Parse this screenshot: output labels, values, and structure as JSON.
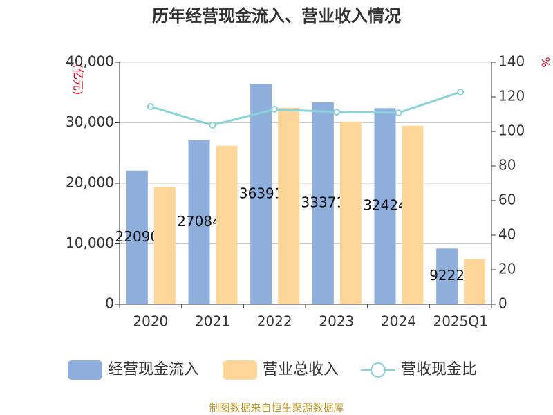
{
  "chart_data": {
    "type": "bar-line",
    "title": "历年经营现金流入、营业收入情况",
    "y_label": "(亿元)",
    "y2_label": "%",
    "categories": [
      "2020",
      "2021",
      "2022",
      "2023",
      "2024",
      "2025Q1"
    ],
    "series": [
      {
        "name": "经营现金流入",
        "type": "bar",
        "color": "#8eaedb",
        "values": [
          22090,
          27084,
          36391,
          33371,
          32424,
          9222
        ]
      },
      {
        "name": "营业总收入",
        "type": "bar",
        "color": "#ffd699",
        "values": [
          19400,
          26200,
          32500,
          30200,
          29500,
          7500
        ]
      },
      {
        "name": "营收现金比",
        "type": "line",
        "axis": "y2",
        "color": "#88d4d8",
        "values": [
          114.4,
          103.6,
          112.8,
          111.2,
          110.8,
          122.8
        ]
      }
    ],
    "ylim": [
      0,
      40000
    ],
    "yticks": [
      0,
      {
        "value": 10000,
        "label": "10,000"
      },
      {
        "value": 20000,
        "label": "20,000"
      },
      {
        "value": 30000,
        "label": "30,000"
      },
      {
        "value": 40000,
        "label": "40,000"
      }
    ],
    "y2lim": [
      0,
      140
    ],
    "y2ticks": [
      0,
      20,
      40,
      60,
      80,
      100,
      120,
      140
    ],
    "grid": true,
    "legend": "bottom",
    "source": "制图数据来自恒生聚源数据库"
  }
}
